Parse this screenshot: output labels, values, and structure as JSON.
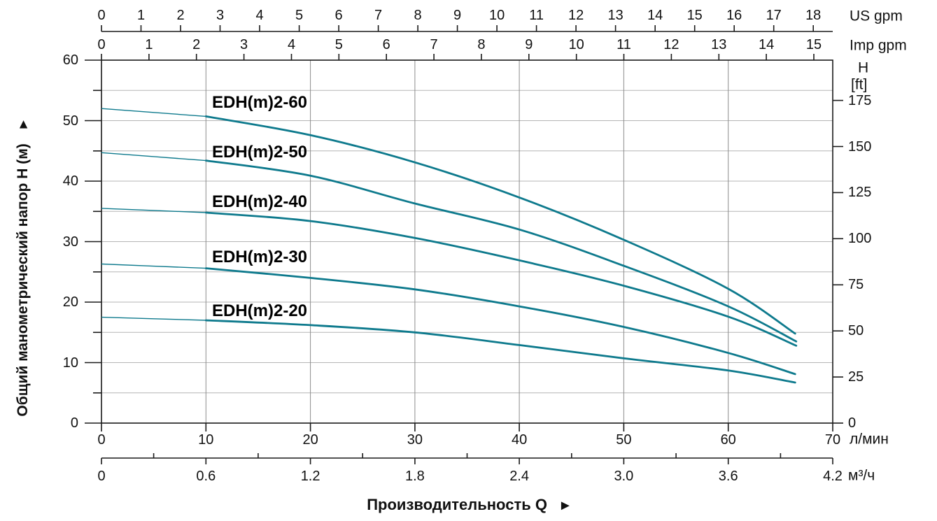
{
  "chart_data": {
    "type": "line",
    "title": "",
    "xlabel": "Производительность Q",
    "xlabel_arrow": "►",
    "ylabel": "Общий манометрический напор H (м)",
    "ylabel_arrow": "►",
    "grid": "on",
    "legend_position": "labels-inline",
    "xlim_lpm": [
      0,
      70
    ],
    "ylim_m": [
      0,
      60
    ],
    "axes": {
      "us_gpm": {
        "label": "US gpm",
        "ticks": [
          0,
          1,
          2,
          3,
          4,
          5,
          6,
          7,
          8,
          9,
          10,
          11,
          12,
          13,
          14,
          15,
          16,
          17,
          18
        ]
      },
      "imp_gpm": {
        "label": "Imp gpm",
        "ticks": [
          0,
          1,
          2,
          3,
          4,
          5,
          6,
          7,
          8,
          9,
          10,
          11,
          12,
          13,
          14,
          15
        ]
      },
      "h_m": {
        "major_ticks": [
          0,
          10,
          20,
          30,
          40,
          50,
          60
        ],
        "minor_step": 5
      },
      "h_ft": {
        "label_line1": "H",
        "label_line2": "[ft]",
        "ticks": [
          0,
          25,
          50,
          75,
          100,
          125,
          150,
          175
        ]
      },
      "lpm": {
        "label": "л/мин",
        "ticks": [
          0,
          10,
          20,
          30,
          40,
          50,
          60,
          70
        ]
      },
      "m3h": {
        "label": "м³/ч",
        "tick_labels": [
          "0",
          "0.6",
          "1.2",
          "1.8",
          "2.4",
          "3.0",
          "3.6",
          "4.2"
        ],
        "minor_step": 0.3,
        "max": 4.2
      }
    },
    "series": [
      {
        "name": "EDH(m)2-60",
        "points_q_lpm_h_m": [
          [
            0,
            52.0
          ],
          [
            10,
            50.7
          ],
          [
            20,
            47.6
          ],
          [
            30,
            43.1
          ],
          [
            40,
            37.3
          ],
          [
            50,
            30.3
          ],
          [
            60,
            22.2
          ],
          [
            66.4,
            14.8
          ]
        ]
      },
      {
        "name": "EDH(m)2-50",
        "points_q_lpm_h_m": [
          [
            0,
            44.7
          ],
          [
            10,
            43.4
          ],
          [
            20,
            40.9
          ],
          [
            30,
            36.3
          ],
          [
            40,
            32.0
          ],
          [
            50,
            26.0
          ],
          [
            60,
            19.3
          ],
          [
            66.5,
            13.5
          ]
        ]
      },
      {
        "name": "EDH(m)2-40",
        "points_q_lpm_h_m": [
          [
            0,
            35.5
          ],
          [
            10,
            34.8
          ],
          [
            20,
            33.4
          ],
          [
            30,
            30.6
          ],
          [
            40,
            26.9
          ],
          [
            50,
            22.7
          ],
          [
            60,
            17.6
          ],
          [
            66.5,
            12.8
          ]
        ]
      },
      {
        "name": "EDH(m)2-30",
        "points_q_lpm_h_m": [
          [
            0,
            26.3
          ],
          [
            10,
            25.6
          ],
          [
            20,
            24.0
          ],
          [
            30,
            22.1
          ],
          [
            40,
            19.3
          ],
          [
            50,
            15.9
          ],
          [
            60,
            11.6
          ],
          [
            66.4,
            8.1
          ]
        ]
      },
      {
        "name": "EDH(m)2-20",
        "points_q_lpm_h_m": [
          [
            0,
            17.5
          ],
          [
            10,
            17.0
          ],
          [
            20,
            16.2
          ],
          [
            30,
            15.0
          ],
          [
            40,
            12.9
          ],
          [
            50,
            10.7
          ],
          [
            60,
            8.7
          ],
          [
            66.4,
            6.7
          ]
        ]
      }
    ],
    "thin_segment_max_q_lpm": 10,
    "colors": {
      "curve": "#0e7a8d",
      "grid_vertical": "#8c8c8c",
      "grid_horizontal": "#b5b5b5",
      "axis": "#1a1a1a",
      "background": "#ffffff"
    }
  }
}
